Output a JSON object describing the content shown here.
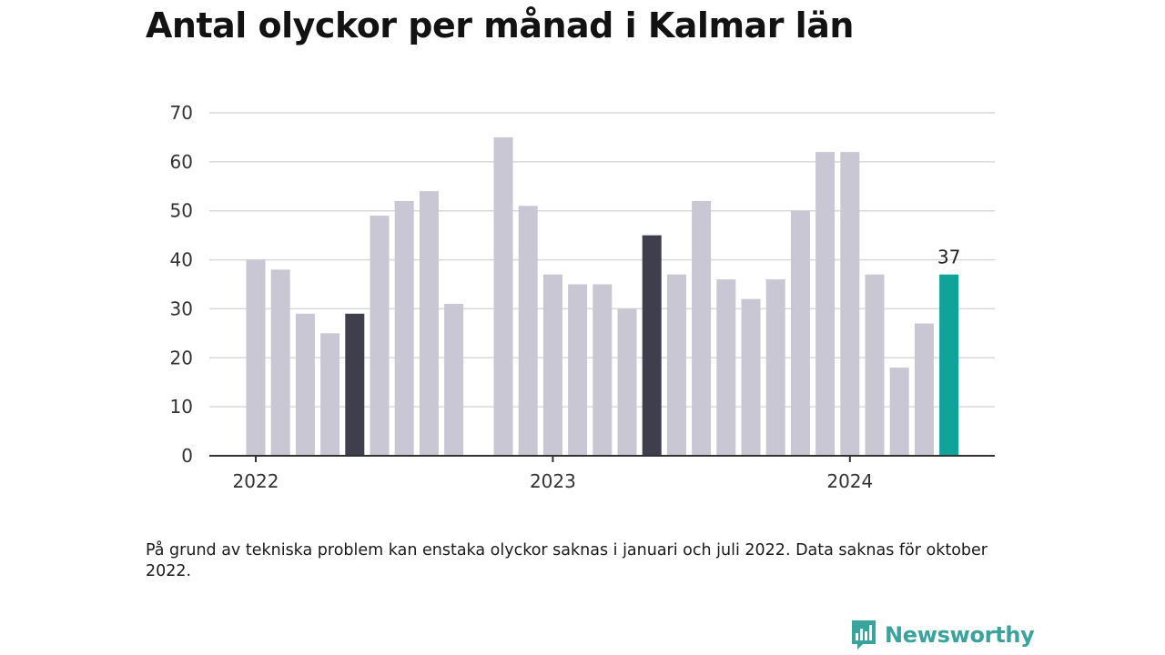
{
  "title": "Antal olyckor per månad i Kalmar län",
  "footnote": "På grund av tekniska problem kan enstaka olyckor saknas i januari och juli 2022. Data saknas för oktober 2022.",
  "brand": {
    "name": "Newsworthy",
    "icon": "newsworthy-logo-icon",
    "color": "#3aa39c"
  },
  "colors": {
    "default_bar": "#c8c7d3",
    "highlight_bar": "#3f3e4d",
    "latest_bar": "#0fa39a",
    "grid": "#d9d9d9",
    "axis": "#333333"
  },
  "chart_data": {
    "type": "bar",
    "title": "Antal olyckor per månad i Kalmar län",
    "xlabel": "",
    "ylabel": "",
    "ylim": [
      0,
      70
    ],
    "yticks": [
      0,
      10,
      20,
      30,
      40,
      50,
      60,
      70
    ],
    "xticks": [
      "2022",
      "2023",
      "2024"
    ],
    "grid": true,
    "categories": [
      "2022-01",
      "2022-02",
      "2022-03",
      "2022-04",
      "2022-05",
      "2022-06",
      "2022-07",
      "2022-08",
      "2022-09",
      "2022-10",
      "2022-11",
      "2022-12",
      "2023-01",
      "2023-02",
      "2023-03",
      "2023-04",
      "2023-05",
      "2023-06",
      "2023-07",
      "2023-08",
      "2023-09",
      "2023-10",
      "2023-11",
      "2023-12",
      "2024-01",
      "2024-02",
      "2024-03",
      "2024-04",
      "2024-05"
    ],
    "values": [
      40,
      38,
      29,
      25,
      29,
      49,
      52,
      54,
      31,
      null,
      65,
      51,
      37,
      35,
      35,
      30,
      45,
      37,
      52,
      36,
      32,
      36,
      50,
      62,
      62,
      37,
      18,
      27,
      37
    ],
    "highlight": [
      "2022-05",
      "2023-05"
    ],
    "latest": "2024-05",
    "annotations": [
      {
        "category": "2024-05",
        "text": "37"
      }
    ]
  }
}
